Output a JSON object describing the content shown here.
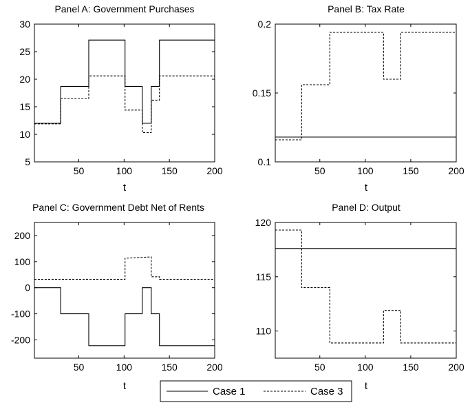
{
  "chart_data": [
    {
      "type": "line",
      "title": "Panel A: Government Purchases",
      "xlabel": "t",
      "xlim": [
        1,
        200
      ],
      "ylim": [
        5,
        30
      ],
      "xticks": [
        50,
        100,
        150,
        200
      ],
      "yticks": [
        5,
        10,
        15,
        20,
        25,
        30
      ],
      "x_tick_labels": [
        "50",
        "100",
        "150",
        "200"
      ],
      "y_tick_labels": [
        "5",
        "10",
        "15",
        "20",
        "25",
        "30"
      ],
      "series": [
        {
          "name": "Case 1",
          "style": "solid",
          "x": [
            1,
            30,
            30,
            61,
            61,
            101,
            101,
            120,
            120,
            130,
            130,
            139,
            139,
            200
          ],
          "values": [
            12,
            12,
            18.7,
            18.7,
            27.1,
            27.1,
            18.7,
            18.7,
            12,
            12,
            18.7,
            18.7,
            27.1,
            27.1
          ]
        },
        {
          "name": "Case 3",
          "style": "dashed",
          "x": [
            1,
            30,
            30,
            61,
            61,
            101,
            101,
            120,
            120,
            130,
            130,
            139,
            139,
            200
          ],
          "values": [
            11.9,
            11.9,
            16.5,
            16.5,
            20.6,
            20.6,
            14.4,
            14.4,
            10.3,
            10.3,
            16.2,
            16.2,
            20.6,
            20.6
          ]
        }
      ]
    },
    {
      "type": "line",
      "title": "Panel B: Tax Rate",
      "xlabel": "t",
      "xlim": [
        1,
        200
      ],
      "ylim": [
        0.1,
        0.2
      ],
      "xticks": [
        50,
        100,
        150,
        200
      ],
      "yticks": [
        0.1,
        0.15,
        0.2
      ],
      "x_tick_labels": [
        "50",
        "100",
        "150",
        "200"
      ],
      "y_tick_labels": [
        "0.1",
        "0.15",
        "0.2"
      ],
      "series": [
        {
          "name": "Case 1",
          "style": "solid",
          "x": [
            1,
            200
          ],
          "values": [
            0.118,
            0.118
          ]
        },
        {
          "name": "Case 3",
          "style": "dashed",
          "x": [
            1,
            30,
            30,
            61,
            61,
            120,
            120,
            139,
            139,
            200
          ],
          "values": [
            0.116,
            0.116,
            0.156,
            0.156,
            0.194,
            0.194,
            0.16,
            0.16,
            0.194,
            0.194
          ]
        }
      ]
    },
    {
      "type": "line",
      "title": "Panel C: Government Debt Net of Rents",
      "xlabel": "t",
      "xlim": [
        1,
        200
      ],
      "ylim": [
        -270,
        250
      ],
      "xticks": [
        50,
        100,
        150,
        200
      ],
      "yticks": [
        -200,
        -100,
        0,
        100,
        200
      ],
      "x_tick_labels": [
        "50",
        "100",
        "150",
        "200"
      ],
      "y_tick_labels": [
        "-200",
        "-100",
        "0",
        "100",
        "200"
      ],
      "series": [
        {
          "name": "Case 1",
          "style": "solid",
          "x": [
            1,
            30,
            30,
            61,
            61,
            101,
            101,
            120,
            120,
            130,
            130,
            139,
            139,
            200
          ],
          "values": [
            0,
            0,
            -100,
            -100,
            -222,
            -222,
            -100,
            -100,
            0,
            0,
            -100,
            -100,
            -222,
            -222
          ]
        },
        {
          "name": "Case 3",
          "style": "dashed",
          "x": [
            1,
            101,
            101,
            130,
            130,
            139,
            139,
            200
          ],
          "values": [
            32,
            32,
            113,
            118,
            42,
            42,
            32,
            32
          ]
        }
      ]
    },
    {
      "type": "line",
      "title": "Panel D: Output",
      "xlabel": "t",
      "xlim": [
        1,
        200
      ],
      "ylim": [
        107.5,
        120
      ],
      "xticks": [
        50,
        100,
        150,
        200
      ],
      "yticks": [
        110,
        115,
        120
      ],
      "x_tick_labels": [
        "50",
        "100",
        "150",
        "200"
      ],
      "y_tick_labels": [
        "110",
        "115",
        "120"
      ],
      "series": [
        {
          "name": "Case 1",
          "style": "solid",
          "x": [
            1,
            200
          ],
          "values": [
            117.6,
            117.6
          ]
        },
        {
          "name": "Case 3",
          "style": "dashed",
          "x": [
            1,
            30,
            30,
            61,
            61,
            120,
            120,
            139,
            139,
            200
          ],
          "values": [
            119.3,
            119.3,
            114,
            114,
            108.9,
            108.9,
            111.9,
            111.9,
            108.9,
            108.9
          ]
        }
      ]
    }
  ],
  "legend": {
    "entries": [
      {
        "label": "Case 1",
        "style": "solid"
      },
      {
        "label": "Case 3",
        "style": "dashed"
      }
    ],
    "placement": "bottom-center"
  }
}
